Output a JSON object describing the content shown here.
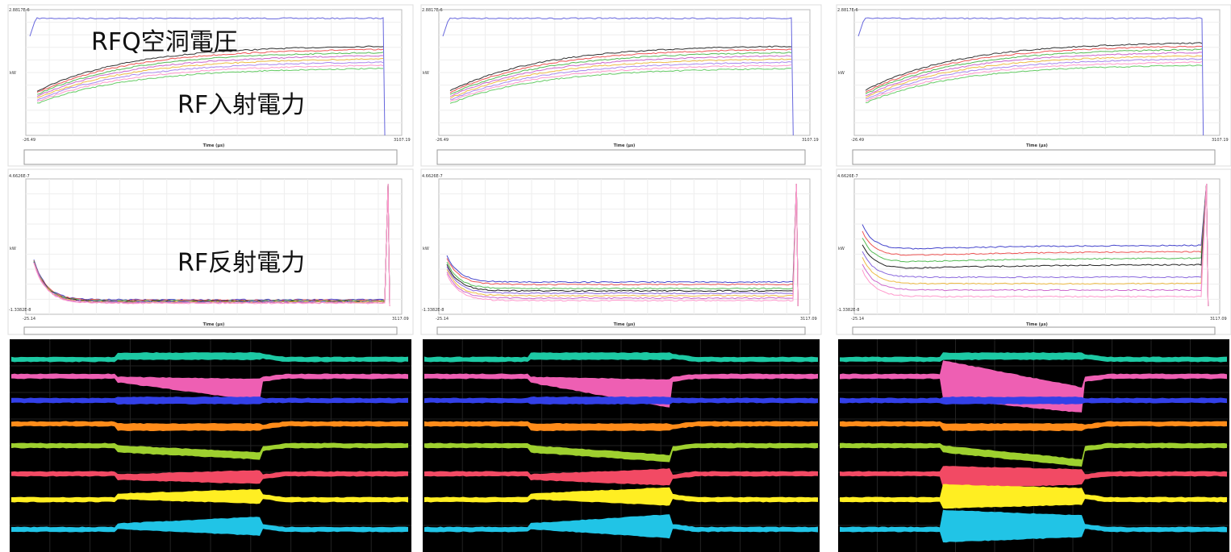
{
  "annotations": {
    "cavity_voltage": "RFQ空洞電圧",
    "forward_power": "RF入射電力",
    "reflected_power": "RF反射電力"
  },
  "panels": [
    {
      "forward": {
        "y_top": "2.8817E-6",
        "x_start": "-26.49",
        "x_end": "3107.19",
        "x_title": "Time (μs)",
        "y_unit": "kW"
      },
      "reflected": {
        "y_top": "4.6626E-7",
        "y_bottom": "-1.3382E-8",
        "x_start": "-25.14",
        "x_end": "3117.09",
        "x_title": "Time (μs)",
        "y_unit": "kW"
      }
    },
    {
      "forward": {
        "y_top": "2.8817E-6",
        "x_start": "-26.49",
        "x_end": "3107.19",
        "x_title": "Time (μs)",
        "y_unit": "kW"
      },
      "reflected": {
        "y_top": "4.6626E-7",
        "y_bottom": "-1.3382E-8",
        "x_start": "-25.14",
        "x_end": "3117.09",
        "x_title": "Time (μs)",
        "y_unit": "kW"
      }
    },
    {
      "forward": {
        "y_top": "2.8817E-6",
        "x_start": "-26.49",
        "x_end": "3107.19",
        "x_title": "Time (μs)",
        "y_unit": "kW"
      },
      "reflected": {
        "y_top": "4.6626E-7",
        "y_bottom": "-1.3382E-8",
        "x_start": "-25.14",
        "x_end": "3117.09",
        "x_title": "Time (μs)",
        "y_unit": "kW"
      }
    }
  ]
}
